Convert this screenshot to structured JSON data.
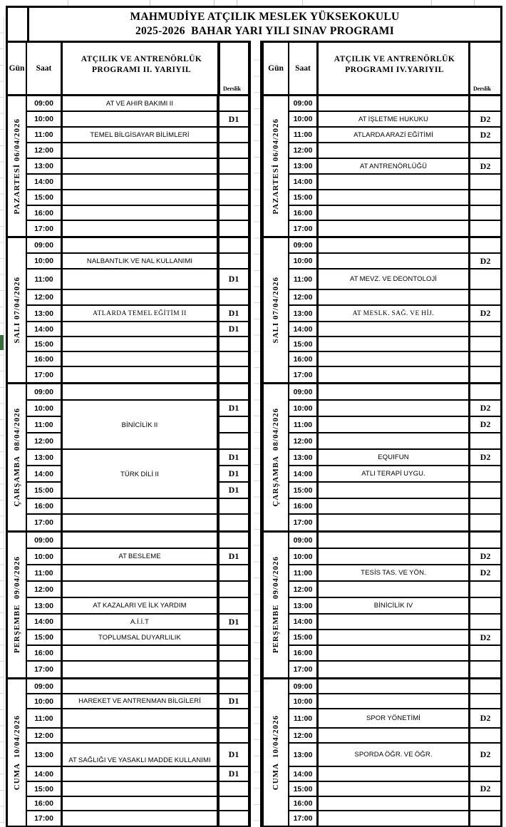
{
  "colors": {
    "border": "#000000",
    "gridline": "#d9d9d9",
    "green_marker": "#3a6b3a",
    "background": "#ffffff"
  },
  "title": {
    "line1": "MAHMUDİYE ATÇILIK MESLEK YÜKSEKOKULU",
    "line2": "2025-2026  BAHAR YARI YILI SINAV PROGRAMI"
  },
  "headers": {
    "gun": "Gün",
    "saat": "Saat",
    "derslik": "Derslik"
  },
  "times": [
    "09:00",
    "10:00",
    "11:00",
    "12:00",
    "13:00",
    "14:00",
    "15:00",
    "16:00",
    "17:00"
  ],
  "tables": [
    {
      "id": "left",
      "program_line1": "ATÇILIK VE ANTRENÖRLÜK",
      "program_line2": "PROGRAMI II. YARIYIL",
      "days": [
        {
          "label": "PAZARTESİ 06/04/2026",
          "rows": [
            {
              "time": "09:00",
              "course": "AT VE AHIR BAKIMI II",
              "derslik": ""
            },
            {
              "time": "10:00",
              "course": "",
              "derslik": "D1"
            },
            {
              "time": "11:00",
              "course": "TEMEL BİLGİSAYAR BİLİMLERİ",
              "derslik": ""
            },
            {
              "time": "12:00",
              "course": "",
              "derslik": ""
            },
            {
              "time": "13:00",
              "course": "",
              "derslik": ""
            },
            {
              "time": "14:00",
              "course": "",
              "derslik": ""
            },
            {
              "time": "15:00",
              "course": "",
              "derslik": ""
            },
            {
              "time": "16:00",
              "course": "",
              "derslik": ""
            },
            {
              "time": "17:00",
              "course": "",
              "derslik": ""
            }
          ]
        },
        {
          "label": "SALI 07/04/2026",
          "rows": [
            {
              "time": "09:00",
              "course": "",
              "derslik": ""
            },
            {
              "time": "10:00",
              "course": "NALBANTLIK VE NAL KULLANIMI",
              "derslik": ""
            },
            {
              "time": "11:00",
              "course": "",
              "derslik": "D1"
            },
            {
              "time": "12:00",
              "course": "",
              "derslik": ""
            },
            {
              "time": "13:00",
              "course": "ATLARDA TEMEL EĞİTİM II",
              "derslik": "D1",
              "serif": true
            },
            {
              "time": "14:00",
              "course": "",
              "derslik": "D1"
            },
            {
              "time": "15:00",
              "course": "",
              "derslik": ""
            },
            {
              "time": "16:00",
              "course": "",
              "derslik": ""
            },
            {
              "time": "17:00",
              "course": "",
              "derslik": ""
            }
          ]
        },
        {
          "label": "ÇARŞAMBA  08/04/2026",
          "rows": [
            {
              "time": "09:00",
              "course": "",
              "derslik": ""
            },
            {
              "time": "10:00",
              "course": "",
              "derslik": "D1",
              "course_no_bottom": true
            },
            {
              "time": "11:00",
              "course": "BİNİCİLİK II",
              "derslik": "",
              "course_no_bottom": true
            },
            {
              "time": "12:00",
              "course": "",
              "derslik": ""
            },
            {
              "time": "13:00",
              "course": "",
              "derslik": "D1",
              "course_no_bottom": true
            },
            {
              "time": "14:00",
              "course": "TÜRK DİLİ II",
              "derslik": "D1",
              "course_no_bottom": true
            },
            {
              "time": "15:00",
              "course": "",
              "derslik": "D1"
            },
            {
              "time": "16:00",
              "course": "",
              "derslik": ""
            },
            {
              "time": "17:00",
              "course": "",
              "derslik": ""
            }
          ]
        },
        {
          "label": "PERŞEMBE  09/04/2026",
          "rows": [
            {
              "time": "09:00",
              "course": "",
              "derslik": ""
            },
            {
              "time": "10:00",
              "course": "AT BESLEME",
              "derslik": "D1"
            },
            {
              "time": "11:00",
              "course": "",
              "derslik": ""
            },
            {
              "time": "12:00",
              "course": "",
              "derslik": ""
            },
            {
              "time": "13:00",
              "course": "AT KAZALARI VE İLK YARDIM",
              "derslik": ""
            },
            {
              "time": "14:00",
              "course": "A.İ.İ.T",
              "derslik": "D1"
            },
            {
              "time": "15:00",
              "course": "TOPLUMSAL DUYARLILIK",
              "derslik": ""
            },
            {
              "time": "16:00",
              "course": "",
              "derslik": ""
            },
            {
              "time": "17:00",
              "course": "",
              "derslik": ""
            }
          ]
        },
        {
          "label": "CUMA  10/04/2026",
          "rows": [
            {
              "time": "09:00",
              "course": "",
              "derslik": ""
            },
            {
              "time": "10:00",
              "course": "HAREKET VE ANTRENMAN BİLGİLERİ",
              "derslik": "D1"
            },
            {
              "time": "11:00",
              "course": "",
              "derslik": ""
            },
            {
              "time": "12:00",
              "course": "",
              "derslik": ""
            },
            {
              "time": "13:00",
              "course": "AT SAĞLIĞI VE YASAKLI MADDE KULLANIMI",
              "derslik": "D1",
              "course_align_bottom": true
            },
            {
              "time": "14:00",
              "course": "",
              "derslik": "D1"
            },
            {
              "time": "15:00",
              "course": "",
              "derslik": ""
            },
            {
              "time": "16:00",
              "course": "",
              "derslik": ""
            },
            {
              "time": "17:00",
              "course": "",
              "derslik": ""
            }
          ]
        }
      ]
    },
    {
      "id": "right",
      "program_line1": "ATÇILIK VE ANTRENÖRLÜK",
      "program_line2": "PROGRAMI IV.YARIYIL",
      "days": [
        {
          "label": "PAZARTESİ 06/04/2026",
          "rows": [
            {
              "time": "09:00",
              "course": "",
              "derslik": ""
            },
            {
              "time": "10:00",
              "course": "AT İŞLETME HUKUKU",
              "derslik": "D2"
            },
            {
              "time": "11:00",
              "course": "ATLARDA ARAZİ EĞİTİMİ",
              "derslik": "D2"
            },
            {
              "time": "12:00",
              "course": "",
              "derslik": ""
            },
            {
              "time": "13:00",
              "course": "AT ANTRENÖRLÜĞÜ",
              "derslik": "D2"
            },
            {
              "time": "14:00",
              "course": "",
              "derslik": ""
            },
            {
              "time": "15:00",
              "course": "",
              "derslik": ""
            },
            {
              "time": "16:00",
              "course": "",
              "derslik": ""
            },
            {
              "time": "17:00",
              "course": "",
              "derslik": ""
            }
          ]
        },
        {
          "label": "SALI 07/04/2026",
          "rows": [
            {
              "time": "09:00",
              "course": "",
              "derslik": ""
            },
            {
              "time": "10:00",
              "course": "",
              "derslik": "D2"
            },
            {
              "time": "11:00",
              "course": "AT MEVZ. VE DEONTOLOJİ",
              "derslik": ""
            },
            {
              "time": "12:00",
              "course": "",
              "derslik": ""
            },
            {
              "time": "13:00",
              "course": "AT MESLK. SAĞ. VE HİJ.",
              "derslik": "D2",
              "serif": true
            },
            {
              "time": "14:00",
              "course": "",
              "derslik": ""
            },
            {
              "time": "15:00",
              "course": "",
              "derslik": ""
            },
            {
              "time": "16:00",
              "course": "",
              "derslik": ""
            },
            {
              "time": "17:00",
              "course": "",
              "derslik": ""
            }
          ]
        },
        {
          "label": "ÇARŞAMBA  08/04/2026",
          "rows": [
            {
              "time": "09:00",
              "course": "",
              "derslik": ""
            },
            {
              "time": "10:00",
              "course": "",
              "derslik": "D2"
            },
            {
              "time": "11:00",
              "course": "",
              "derslik": "D2"
            },
            {
              "time": "12:00",
              "course": "",
              "derslik": ""
            },
            {
              "time": "13:00",
              "course": "EQUIFUN",
              "derslik": "D2"
            },
            {
              "time": "14:00",
              "course": "ATLI TERAPİ UYGU.",
              "derslik": ""
            },
            {
              "time": "15:00",
              "course": "",
              "derslik": ""
            },
            {
              "time": "16:00",
              "course": "",
              "derslik": ""
            },
            {
              "time": "17:00",
              "course": "",
              "derslik": ""
            }
          ]
        },
        {
          "label": "PERŞEMBE  09/04/2026",
          "rows": [
            {
              "time": "09:00",
              "course": "",
              "derslik": ""
            },
            {
              "time": "10:00",
              "course": "",
              "derslik": "D2"
            },
            {
              "time": "11:00",
              "course": "TESİS TAS. VE YÖN.",
              "derslik": "D2"
            },
            {
              "time": "12:00",
              "course": "",
              "derslik": ""
            },
            {
              "time": "13:00",
              "course": "BİNİCİLİK IV",
              "derslik": ""
            },
            {
              "time": "14:00",
              "course": "",
              "derslik": ""
            },
            {
              "time": "15:00",
              "course": "",
              "derslik": "D2"
            },
            {
              "time": "16:00",
              "course": "",
              "derslik": ""
            },
            {
              "time": "17:00",
              "course": "",
              "derslik": ""
            }
          ]
        },
        {
          "label": "CUMA  10/04/2026",
          "rows": [
            {
              "time": "09:00",
              "course": "",
              "derslik": ""
            },
            {
              "time": "10:00",
              "course": "",
              "derslik": ""
            },
            {
              "time": "11:00",
              "course": "SPOR YÖNETİMİ",
              "derslik": "D2"
            },
            {
              "time": "12:00",
              "course": "",
              "derslik": ""
            },
            {
              "time": "13:00",
              "course": "SPORDA ÖĞR. VE ÖĞR.",
              "derslik": "D2"
            },
            {
              "time": "14:00",
              "course": "",
              "derslik": ""
            },
            {
              "time": "15:00",
              "course": "",
              "derslik": "D2"
            },
            {
              "time": "16:00",
              "course": "",
              "derslik": ""
            },
            {
              "time": "17:00",
              "course": "",
              "derslik": ""
            }
          ]
        }
      ]
    }
  ]
}
